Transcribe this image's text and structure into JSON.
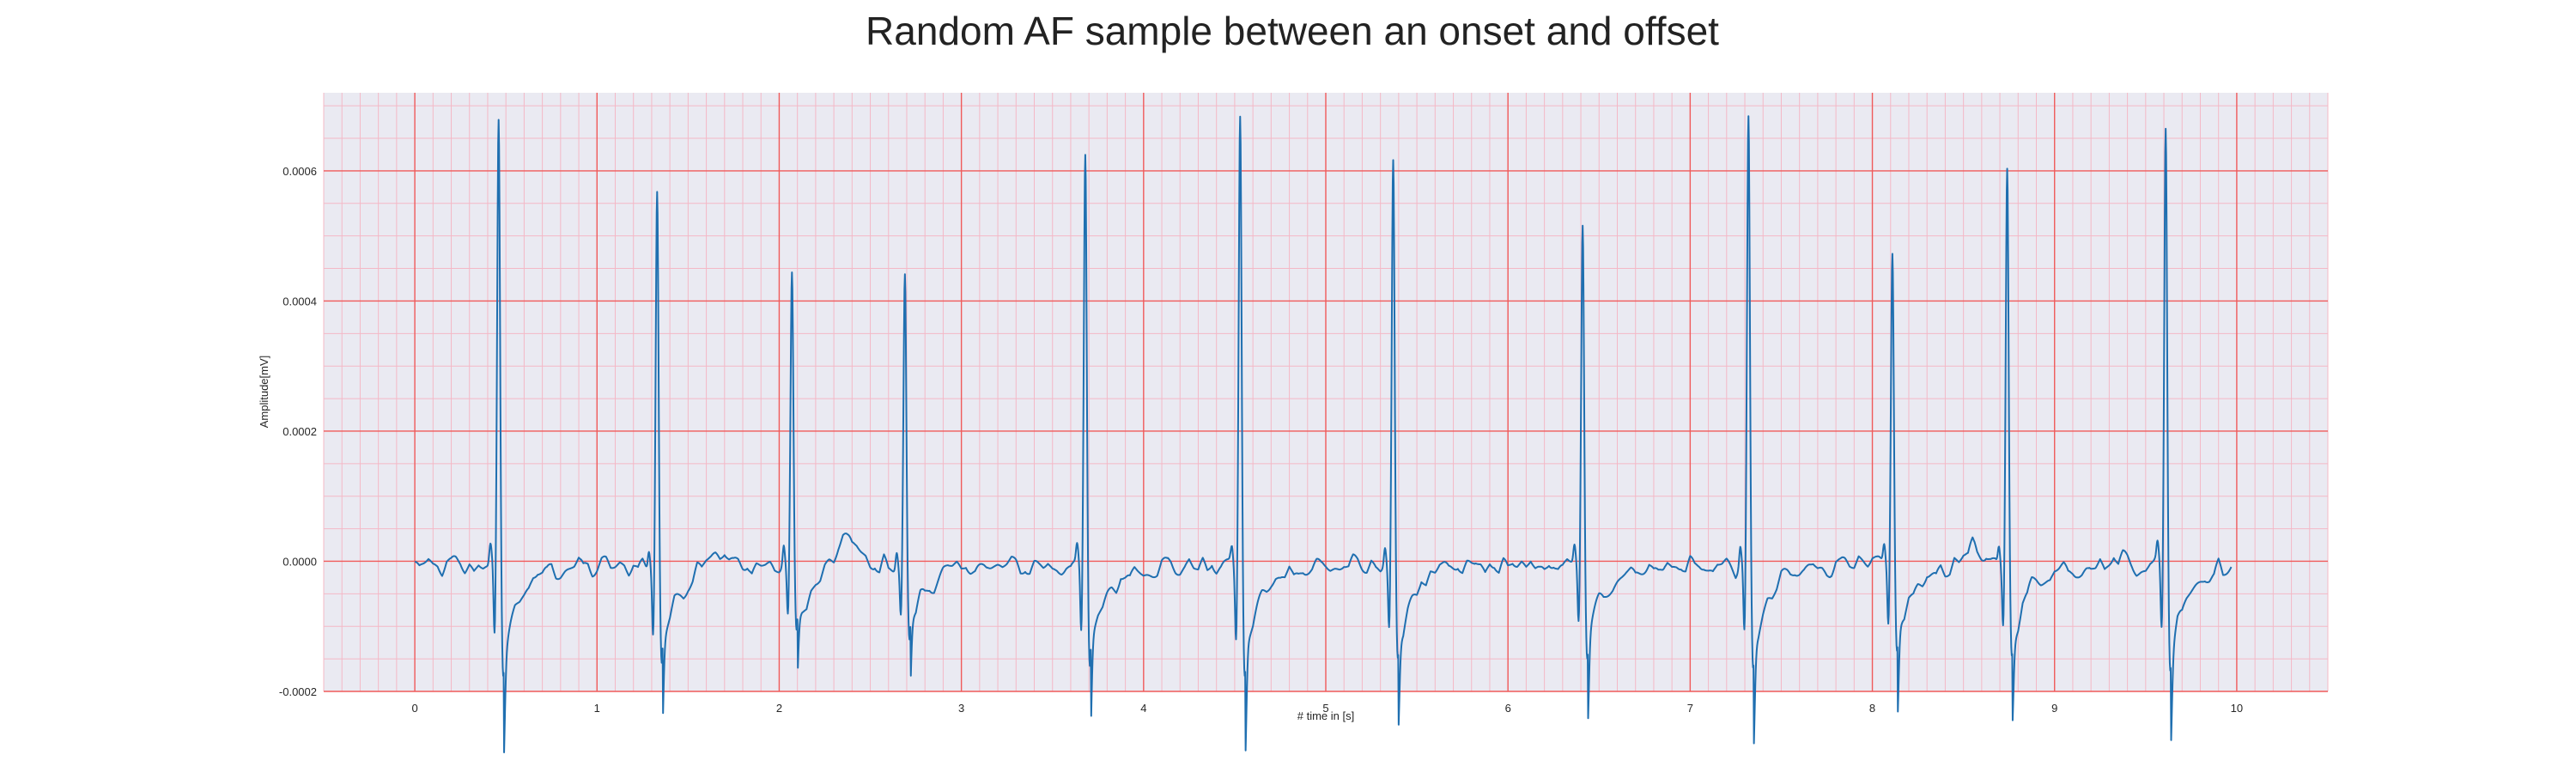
{
  "chart_data": {
    "type": "line",
    "title": "Random AF sample between an onset and offset",
    "xlabel": "# time in [s]",
    "ylabel": "Amplitude[mV]",
    "xlim": [
      -0.5,
      10.5
    ],
    "ylim": [
      -0.0002,
      0.00072
    ],
    "x_ticks": [
      0,
      1,
      2,
      3,
      4,
      5,
      6,
      7,
      8,
      9,
      10
    ],
    "x_tick_labels": [
      "0",
      "1",
      "2",
      "3",
      "4",
      "5",
      "6",
      "7",
      "8",
      "9",
      "10"
    ],
    "y_ticks": [
      -0.0002,
      0.0,
      0.0002,
      0.0004,
      0.0006
    ],
    "y_tick_labels": [
      "-0.0002",
      "0.0000",
      "0.0002",
      "0.0004",
      "0.0006"
    ],
    "grid": true,
    "grid_minor": true,
    "colors": {
      "line": "#1f6fb0",
      "plot_background": "#eaeaf2",
      "major_grid": "#f05a5a",
      "minor_grid": "#f4b8c6",
      "title": "#222222",
      "text": "#262626"
    },
    "series": [
      {
        "x_start": 0.0,
        "x_end": 9.97,
        "qrs_complexes": [
          {
            "t": 0.46,
            "peak": 0.00069,
            "trough": -0.000165
          },
          {
            "t": 1.33,
            "peak": 0.000585,
            "trough": -0.00015
          },
          {
            "t": 2.07,
            "peak": 0.000445,
            "trough": -0.00011
          },
          {
            "t": 2.69,
            "peak": 0.000452,
            "trough": -0.000115
          },
          {
            "t": 3.68,
            "peak": 0.000638,
            "trough": -0.000155
          },
          {
            "t": 4.53,
            "peak": 0.000692,
            "trough": -0.000165
          },
          {
            "t": 5.37,
            "peak": 0.00062,
            "trough": -0.000145
          },
          {
            "t": 6.41,
            "peak": 0.00053,
            "trough": -0.000135
          },
          {
            "t": 7.32,
            "peak": 0.00068,
            "trough": -0.00016
          },
          {
            "t": 8.11,
            "peak": 0.000482,
            "trough": -0.000135
          },
          {
            "t": 8.74,
            "peak": 0.00061,
            "trough": -0.000135
          },
          {
            "t": 9.61,
            "peak": 0.000682,
            "trough": -0.00015
          }
        ],
        "baseline_waves": [
          {
            "t": 1.64,
            "amp": 3e-05
          },
          {
            "t": 2.37,
            "amp": 5e-05
          },
          {
            "t": 7.88,
            "amp": 1e-05
          },
          {
            "t": 8.54,
            "amp": 2.8e-05
          },
          {
            "t": 9.35,
            "amp": 1.2e-05
          }
        ]
      }
    ]
  }
}
